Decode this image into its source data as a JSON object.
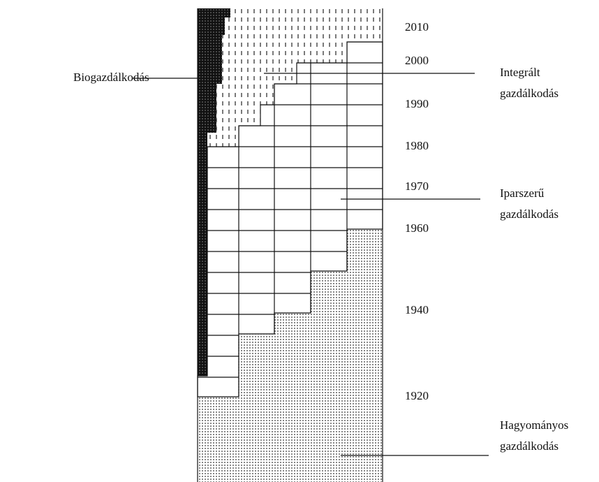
{
  "years": [
    "2010",
    "2000",
    "1990",
    "1980",
    "1970",
    "1960",
    "1940",
    "1920"
  ],
  "left_label": "Biogazdálkodás",
  "right_labels": [
    {
      "lines": [
        "Integrált",
        "gazdálkodás"
      ]
    },
    {
      "lines": [
        "Iparszerű",
        "gazdálkodás"
      ]
    },
    {
      "lines": [
        "Hagyományos",
        "gazdálkodás"
      ]
    }
  ]
}
